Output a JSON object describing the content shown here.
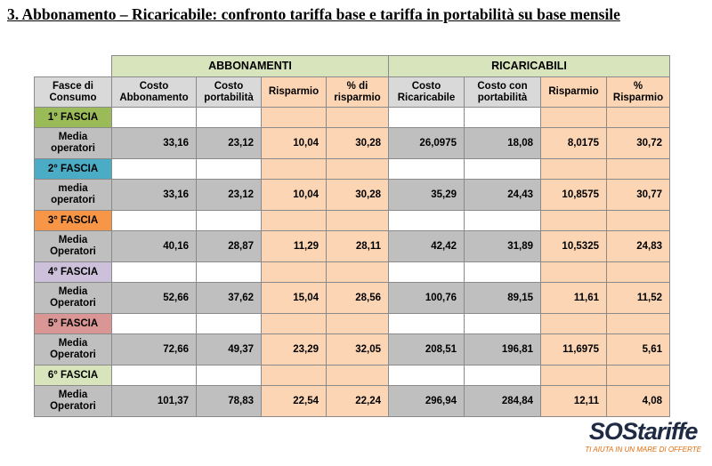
{
  "title": "3. Abbonamento – Ricaricabile: confronto tariffa base e tariffa in portabilità su base mensile",
  "table": {
    "groups": [
      "ABBONAMENTI",
      "RICARICABILI"
    ],
    "header": [
      "Fasce di Consumo",
      "Costo Abbonamento",
      "Costo portabilità",
      "Risparmio",
      "% di risparmio",
      "Costo Ricaricabile",
      "Costo con portabilità",
      "Risparmio",
      "% Risparmio"
    ],
    "rows": [
      [
        "1° FASCIA"
      ],
      [
        "Media operatori",
        "33,16",
        "23,12",
        "10,04",
        "30,28",
        "26,0975",
        "18,08",
        "8,0175",
        "30,72"
      ],
      [
        "2° FASCIA"
      ],
      [
        "media operatori",
        "33,16",
        "23,12",
        "10,04",
        "30,28",
        "35,29",
        "24,43",
        "10,8575",
        "30,77"
      ],
      [
        "3° FASCIA"
      ],
      [
        "Media Operatori",
        "40,16",
        "28,87",
        "11,29",
        "28,11",
        "42,42",
        "31,89",
        "10,5325",
        "24,83"
      ],
      [
        "4° FASCIA"
      ],
      [
        "Media Operatori",
        "52,66",
        "37,62",
        "15,04",
        "28,56",
        "100,76",
        "89,15",
        "11,61",
        "11,52"
      ],
      [
        "5° FASCIA"
      ],
      [
        "Media Operatori",
        "72,66",
        "49,37",
        "23,29",
        "32,05",
        "208,51",
        "196,81",
        "11,6975",
        "5,61"
      ],
      [
        "6° FASCIA"
      ],
      [
        "Media Operatori",
        "101,37",
        "78,83",
        "22,54",
        "22,24",
        "296,94",
        "284,84",
        "12,11",
        "4,08"
      ]
    ]
  },
  "logo": {
    "brand": "SOStariffe",
    "tagline": "TI AIUTA IN UN MARE DI OFFERTE"
  }
}
